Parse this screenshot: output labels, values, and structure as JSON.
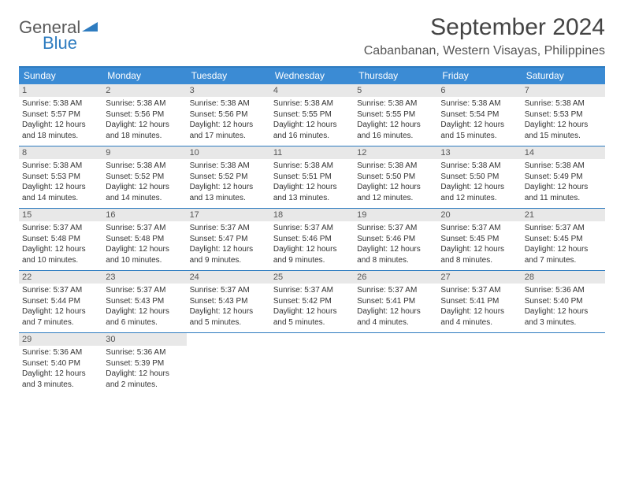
{
  "logo": {
    "general": "General",
    "blue": "Blue"
  },
  "title": "September 2024",
  "location": "Cabanbanan, Western Visayas, Philippines",
  "weekdays": [
    "Sunday",
    "Monday",
    "Tuesday",
    "Wednesday",
    "Thursday",
    "Friday",
    "Saturday"
  ],
  "colors": {
    "header_blue": "#3b8bd4",
    "rule_blue": "#2e7cc0",
    "daynum_bg": "#e8e8e8"
  },
  "weeks": [
    [
      {
        "n": "1",
        "sr": "Sunrise: 5:38 AM",
        "ss": "Sunset: 5:57 PM",
        "d1": "Daylight: 12 hours",
        "d2": "and 18 minutes."
      },
      {
        "n": "2",
        "sr": "Sunrise: 5:38 AM",
        "ss": "Sunset: 5:56 PM",
        "d1": "Daylight: 12 hours",
        "d2": "and 18 minutes."
      },
      {
        "n": "3",
        "sr": "Sunrise: 5:38 AM",
        "ss": "Sunset: 5:56 PM",
        "d1": "Daylight: 12 hours",
        "d2": "and 17 minutes."
      },
      {
        "n": "4",
        "sr": "Sunrise: 5:38 AM",
        "ss": "Sunset: 5:55 PM",
        "d1": "Daylight: 12 hours",
        "d2": "and 16 minutes."
      },
      {
        "n": "5",
        "sr": "Sunrise: 5:38 AM",
        "ss": "Sunset: 5:55 PM",
        "d1": "Daylight: 12 hours",
        "d2": "and 16 minutes."
      },
      {
        "n": "6",
        "sr": "Sunrise: 5:38 AM",
        "ss": "Sunset: 5:54 PM",
        "d1": "Daylight: 12 hours",
        "d2": "and 15 minutes."
      },
      {
        "n": "7",
        "sr": "Sunrise: 5:38 AM",
        "ss": "Sunset: 5:53 PM",
        "d1": "Daylight: 12 hours",
        "d2": "and 15 minutes."
      }
    ],
    [
      {
        "n": "8",
        "sr": "Sunrise: 5:38 AM",
        "ss": "Sunset: 5:53 PM",
        "d1": "Daylight: 12 hours",
        "d2": "and 14 minutes."
      },
      {
        "n": "9",
        "sr": "Sunrise: 5:38 AM",
        "ss": "Sunset: 5:52 PM",
        "d1": "Daylight: 12 hours",
        "d2": "and 14 minutes."
      },
      {
        "n": "10",
        "sr": "Sunrise: 5:38 AM",
        "ss": "Sunset: 5:52 PM",
        "d1": "Daylight: 12 hours",
        "d2": "and 13 minutes."
      },
      {
        "n": "11",
        "sr": "Sunrise: 5:38 AM",
        "ss": "Sunset: 5:51 PM",
        "d1": "Daylight: 12 hours",
        "d2": "and 13 minutes."
      },
      {
        "n": "12",
        "sr": "Sunrise: 5:38 AM",
        "ss": "Sunset: 5:50 PM",
        "d1": "Daylight: 12 hours",
        "d2": "and 12 minutes."
      },
      {
        "n": "13",
        "sr": "Sunrise: 5:38 AM",
        "ss": "Sunset: 5:50 PM",
        "d1": "Daylight: 12 hours",
        "d2": "and 12 minutes."
      },
      {
        "n": "14",
        "sr": "Sunrise: 5:38 AM",
        "ss": "Sunset: 5:49 PM",
        "d1": "Daylight: 12 hours",
        "d2": "and 11 minutes."
      }
    ],
    [
      {
        "n": "15",
        "sr": "Sunrise: 5:37 AM",
        "ss": "Sunset: 5:48 PM",
        "d1": "Daylight: 12 hours",
        "d2": "and 10 minutes."
      },
      {
        "n": "16",
        "sr": "Sunrise: 5:37 AM",
        "ss": "Sunset: 5:48 PM",
        "d1": "Daylight: 12 hours",
        "d2": "and 10 minutes."
      },
      {
        "n": "17",
        "sr": "Sunrise: 5:37 AM",
        "ss": "Sunset: 5:47 PM",
        "d1": "Daylight: 12 hours",
        "d2": "and 9 minutes."
      },
      {
        "n": "18",
        "sr": "Sunrise: 5:37 AM",
        "ss": "Sunset: 5:46 PM",
        "d1": "Daylight: 12 hours",
        "d2": "and 9 minutes."
      },
      {
        "n": "19",
        "sr": "Sunrise: 5:37 AM",
        "ss": "Sunset: 5:46 PM",
        "d1": "Daylight: 12 hours",
        "d2": "and 8 minutes."
      },
      {
        "n": "20",
        "sr": "Sunrise: 5:37 AM",
        "ss": "Sunset: 5:45 PM",
        "d1": "Daylight: 12 hours",
        "d2": "and 8 minutes."
      },
      {
        "n": "21",
        "sr": "Sunrise: 5:37 AM",
        "ss": "Sunset: 5:45 PM",
        "d1": "Daylight: 12 hours",
        "d2": "and 7 minutes."
      }
    ],
    [
      {
        "n": "22",
        "sr": "Sunrise: 5:37 AM",
        "ss": "Sunset: 5:44 PM",
        "d1": "Daylight: 12 hours",
        "d2": "and 7 minutes."
      },
      {
        "n": "23",
        "sr": "Sunrise: 5:37 AM",
        "ss": "Sunset: 5:43 PM",
        "d1": "Daylight: 12 hours",
        "d2": "and 6 minutes."
      },
      {
        "n": "24",
        "sr": "Sunrise: 5:37 AM",
        "ss": "Sunset: 5:43 PM",
        "d1": "Daylight: 12 hours",
        "d2": "and 5 minutes."
      },
      {
        "n": "25",
        "sr": "Sunrise: 5:37 AM",
        "ss": "Sunset: 5:42 PM",
        "d1": "Daylight: 12 hours",
        "d2": "and 5 minutes."
      },
      {
        "n": "26",
        "sr": "Sunrise: 5:37 AM",
        "ss": "Sunset: 5:41 PM",
        "d1": "Daylight: 12 hours",
        "d2": "and 4 minutes."
      },
      {
        "n": "27",
        "sr": "Sunrise: 5:37 AM",
        "ss": "Sunset: 5:41 PM",
        "d1": "Daylight: 12 hours",
        "d2": "and 4 minutes."
      },
      {
        "n": "28",
        "sr": "Sunrise: 5:36 AM",
        "ss": "Sunset: 5:40 PM",
        "d1": "Daylight: 12 hours",
        "d2": "and 3 minutes."
      }
    ],
    [
      {
        "n": "29",
        "sr": "Sunrise: 5:36 AM",
        "ss": "Sunset: 5:40 PM",
        "d1": "Daylight: 12 hours",
        "d2": "and 3 minutes."
      },
      {
        "n": "30",
        "sr": "Sunrise: 5:36 AM",
        "ss": "Sunset: 5:39 PM",
        "d1": "Daylight: 12 hours",
        "d2": "and 2 minutes."
      },
      null,
      null,
      null,
      null,
      null
    ]
  ]
}
